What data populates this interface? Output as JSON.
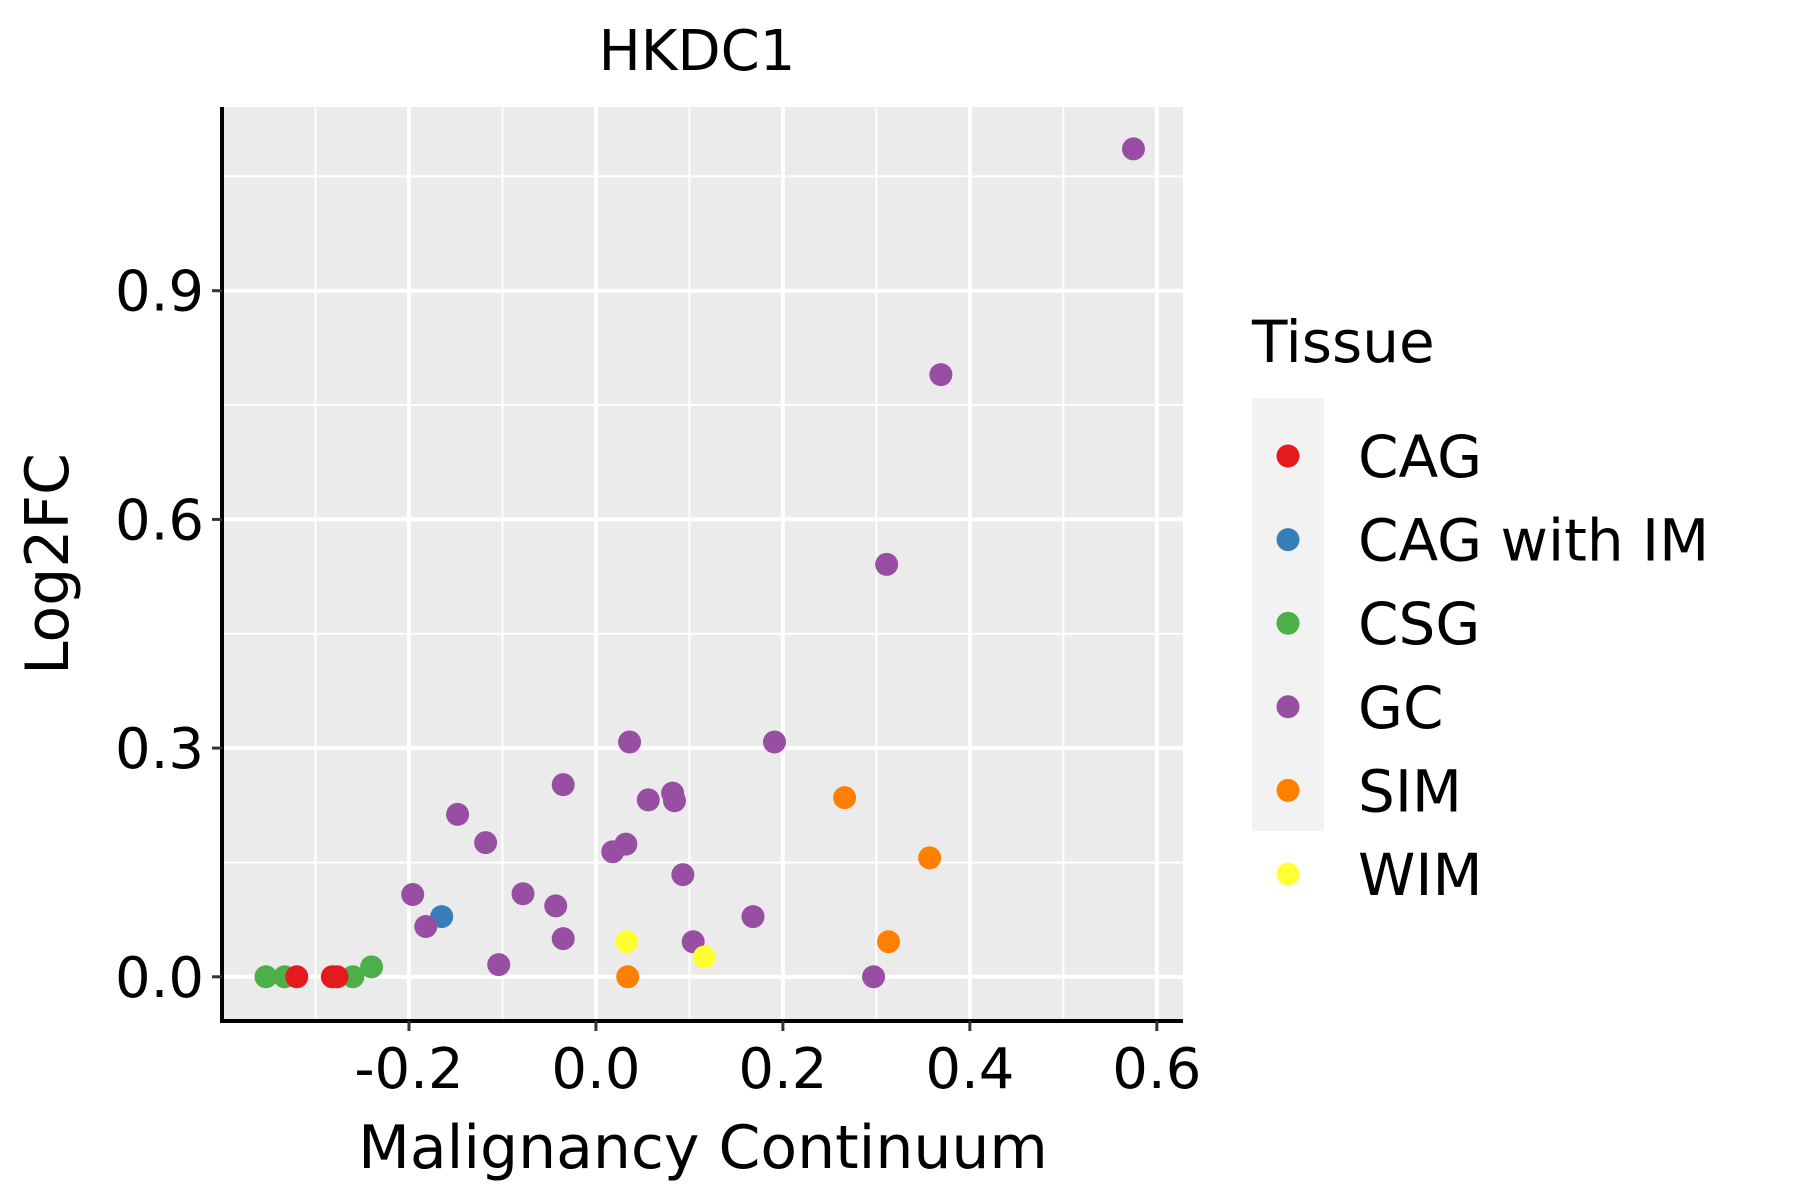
{
  "chart_data": {
    "type": "scatter",
    "title": "HKDC1",
    "xlabel": "Malignancy Continuum",
    "ylabel": "Log2FC",
    "xlim": [
      -0.4,
      0.628
    ],
    "ylim": [
      -0.058,
      1.141
    ],
    "x_ticks": [
      -0.2,
      0.0,
      0.2,
      0.4,
      0.6
    ],
    "x_tick_labels": [
      "-0.2",
      "0.0",
      "0.2",
      "0.4",
      "0.6"
    ],
    "x_minor_grid": [
      -0.3,
      -0.1,
      0.1,
      0.3,
      0.5
    ],
    "y_ticks": [
      0.0,
      0.3,
      0.6,
      0.9
    ],
    "y_tick_labels": [
      "0.0",
      "0.3",
      "0.6",
      "0.9"
    ],
    "y_minor_grid": [
      0.15,
      0.45,
      0.75,
      1.05
    ],
    "grid": true,
    "legend": {
      "title": "Tissue",
      "placement": "right",
      "entries": [
        {
          "name": "CAG",
          "color": "#E41A1C"
        },
        {
          "name": "CAG with IM",
          "color": "#377EB8"
        },
        {
          "name": "CSG",
          "color": "#4DAF4A"
        },
        {
          "name": "GC",
          "color": "#984EA3"
        },
        {
          "name": "SIM",
          "color": "#FF7F00"
        },
        {
          "name": "WIM",
          "color": "#FFFF33"
        }
      ]
    },
    "series": [
      {
        "name": "CSG",
        "color": "#4DAF4A",
        "points": [
          [
            -0.353,
            0.0
          ],
          [
            -0.333,
            0.0
          ],
          [
            -0.26,
            0.0
          ],
          [
            -0.24,
            0.013
          ]
        ]
      },
      {
        "name": "CAG",
        "color": "#E41A1C",
        "points": [
          [
            -0.32,
            0.0
          ],
          [
            -0.282,
            0.0
          ],
          [
            -0.277,
            0.0
          ]
        ]
      },
      {
        "name": "CAG with IM",
        "color": "#377EB8",
        "points": [
          [
            -0.165,
            0.079
          ]
        ]
      },
      {
        "name": "GC",
        "color": "#984EA3",
        "points": [
          [
            0.575,
            1.086
          ],
          [
            0.369,
            0.79
          ],
          [
            0.311,
            0.541
          ],
          [
            0.191,
            0.308
          ],
          [
            0.036,
            0.308
          ],
          [
            -0.035,
            0.252
          ],
          [
            -0.148,
            0.213
          ],
          [
            -0.118,
            0.176
          ],
          [
            0.056,
            0.232
          ],
          [
            0.082,
            0.241
          ],
          [
            0.084,
            0.231
          ],
          [
            0.032,
            0.174
          ],
          [
            0.018,
            0.164
          ],
          [
            0.093,
            0.134
          ],
          [
            -0.196,
            0.108
          ],
          [
            -0.182,
            0.066
          ],
          [
            -0.078,
            0.109
          ],
          [
            -0.043,
            0.093
          ],
          [
            -0.035,
            0.05
          ],
          [
            -0.104,
            0.016
          ],
          [
            0.104,
            0.046
          ],
          [
            0.168,
            0.079
          ],
          [
            0.297,
            0.0
          ]
        ]
      },
      {
        "name": "SIM",
        "color": "#FF7F00",
        "points": [
          [
            0.034,
            0.0
          ],
          [
            0.266,
            0.235
          ],
          [
            0.357,
            0.156
          ],
          [
            0.313,
            0.046
          ]
        ]
      },
      {
        "name": "WIM",
        "color": "#FFFF33",
        "points": [
          [
            0.033,
            0.046
          ],
          [
            0.116,
            0.026
          ]
        ]
      }
    ]
  }
}
